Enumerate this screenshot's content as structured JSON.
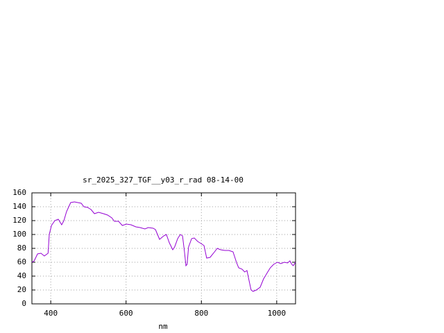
{
  "chart_data": {
    "type": "line",
    "title": "sr_2025_327_TGF__y03_r_rad 08-14-00",
    "x_label": "nm",
    "x": [
      350,
      356,
      365,
      374,
      383,
      393,
      396,
      402,
      411,
      420,
      429,
      435,
      442,
      453,
      463,
      472,
      481,
      488,
      498,
      507,
      516,
      527,
      540,
      551,
      562,
      569,
      580,
      590,
      601,
      613,
      626,
      637,
      650,
      659,
      672,
      678,
      689,
      700,
      707,
      715,
      724,
      729,
      737,
      744,
      750,
      755,
      759,
      762,
      766,
      774,
      781,
      790,
      799,
      807,
      814,
      823,
      832,
      842,
      851,
      862,
      873,
      884,
      893,
      899,
      908,
      915,
      921,
      926,
      932,
      937,
      946,
      956,
      965,
      974,
      983,
      992,
      1002,
      1011,
      1020,
      1029,
      1035,
      1040,
      1044,
      1050
    ],
    "series": [
      {
        "color": "#9400d3",
        "values": [
          60,
          62,
          72,
          73,
          69,
          73,
          100,
          113,
          120,
          122,
          114,
          120,
          133,
          146,
          147,
          146,
          145,
          140,
          139,
          136,
          130,
          132,
          130,
          128,
          124,
          119,
          119,
          113,
          115,
          114,
          111,
          110,
          108,
          110,
          109,
          107,
          93,
          98,
          100,
          88,
          78,
          82,
          94,
          100,
          98,
          75,
          55,
          57,
          82,
          94,
          95,
          90,
          87,
          84,
          66,
          67,
          73,
          80,
          78,
          77,
          77,
          75,
          60,
          52,
          50,
          46,
          48,
          35,
          20,
          18,
          20,
          24,
          36,
          44,
          52,
          57,
          60,
          58,
          60,
          59,
          62,
          57,
          55,
          60
        ]
      }
    ],
    "xlim": [
      350,
      1050
    ],
    "ylim": [
      0,
      160
    ],
    "xticks": [
      400,
      600,
      800,
      1000
    ],
    "yticks": [
      0,
      20,
      40,
      60,
      80,
      100,
      120,
      140,
      160
    ],
    "grid": true
  }
}
